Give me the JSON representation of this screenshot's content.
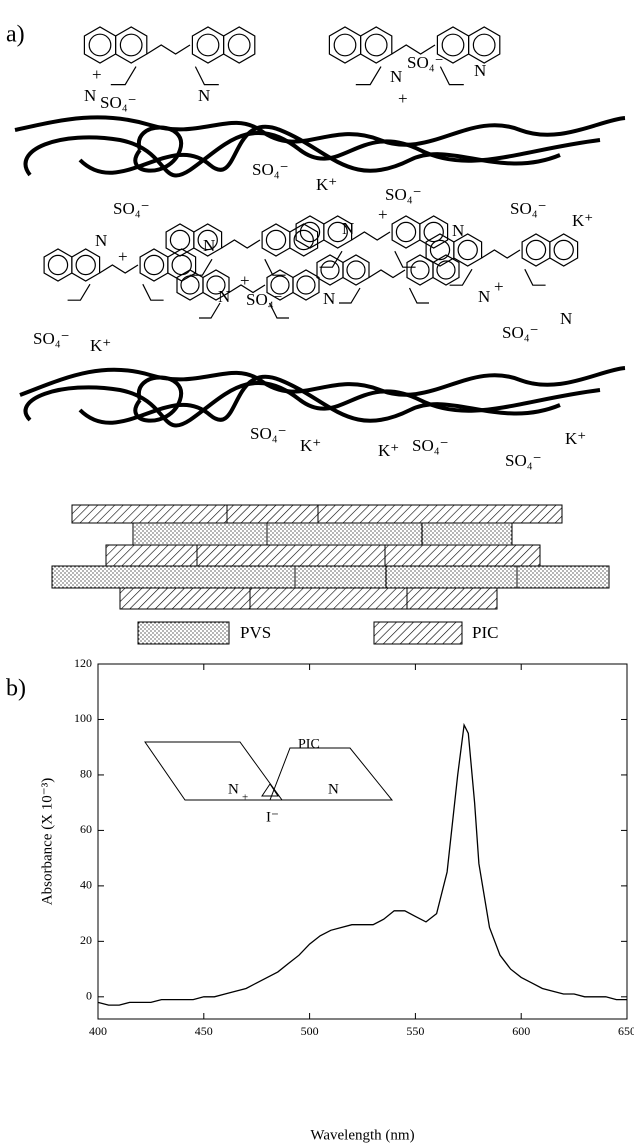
{
  "panel_a": {
    "label": "a)",
    "labels": [
      "N",
      "+",
      "SO₄⁻",
      "N",
      "N",
      "+",
      "SO₄⁻",
      "N",
      "SO₄⁻",
      "SO₄⁻",
      "K⁺",
      "SO₄⁻",
      "SO₄⁻",
      "K⁺",
      "N",
      "+",
      "N",
      "N",
      "+",
      "N",
      "N",
      "+",
      "SO₄⁻",
      "N",
      "N",
      "+",
      "SO₄⁻",
      "N",
      "SO₄⁻",
      "K⁺",
      "SO₄⁻",
      "K⁺",
      "K⁺",
      "SO₄⁻",
      "SO₄⁻",
      "K⁺"
    ],
    "legend": [
      "PVS",
      "PIC"
    ]
  },
  "chart_data": {
    "type": "line",
    "panel_label": "b)",
    "x_label": "Wavelength (nm)",
    "y_label": "Absorbance (X 10⁻³)",
    "annotations": [
      "PIC",
      "N",
      "+",
      "N",
      "I⁻"
    ],
    "xlim": [
      400,
      650
    ],
    "xticks": [
      400,
      450,
      500,
      550,
      600,
      650
    ],
    "ylim": [
      -8,
      120
    ],
    "yticks": [
      0,
      20,
      40,
      60,
      80,
      100,
      120
    ],
    "x": [
      400,
      405,
      410,
      415,
      420,
      425,
      430,
      435,
      440,
      445,
      450,
      455,
      460,
      465,
      470,
      475,
      480,
      485,
      490,
      495,
      500,
      505,
      510,
      515,
      520,
      525,
      530,
      535,
      540,
      545,
      550,
      555,
      560,
      565,
      570,
      573,
      575,
      578,
      580,
      585,
      590,
      595,
      600,
      605,
      610,
      615,
      620,
      625,
      630,
      635,
      640,
      645,
      650
    ],
    "series": [
      {
        "color": "#000000",
        "values": [
          -2,
          -3,
          -3,
          -2,
          -2,
          -2,
          -1,
          -1,
          -1,
          -1,
          0,
          0,
          1,
          2,
          3,
          5,
          7,
          9,
          12,
          15,
          19,
          22,
          24,
          25,
          26,
          26,
          26,
          28,
          31,
          31,
          29,
          27,
          30,
          45,
          80,
          98,
          95,
          70,
          48,
          25,
          15,
          10,
          7,
          5,
          3,
          2,
          1,
          1,
          0,
          0,
          0,
          -1,
          -1
        ]
      }
    ]
  }
}
